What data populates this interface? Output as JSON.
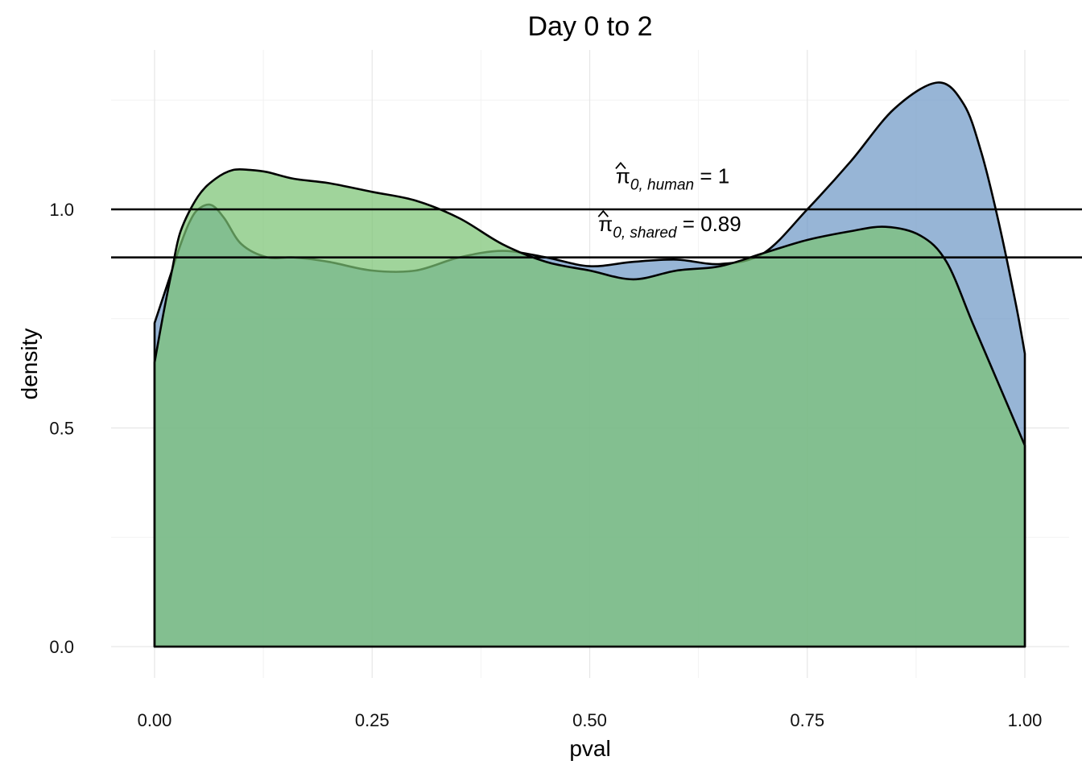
{
  "chart_data": {
    "type": "area",
    "title": "Day 0 to 2",
    "xlabel": "pval",
    "ylabel": "density",
    "xlim": [
      0,
      1
    ],
    "ylim": [
      0,
      1.25
    ],
    "x_ticks": [
      0,
      0.25,
      0.5,
      0.75,
      1
    ],
    "x_tick_labels": [
      "0.00",
      "0.25",
      "0.50",
      "0.75",
      "1.00"
    ],
    "y_ticks": [
      0,
      0.5,
      1
    ],
    "y_tick_labels": [
      "0.0",
      "0.5",
      "1.0"
    ],
    "grid": true,
    "legend": "none",
    "series": [
      {
        "color": "#6f98c6",
        "fill_opacity": 0.72,
        "x": [
          0,
          0.01,
          0.02,
          0.03,
          0.04,
          0.05,
          0.065,
          0.08,
          0.1,
          0.13,
          0.16,
          0.2,
          0.25,
          0.3,
          0.35,
          0.4,
          0.45,
          0.5,
          0.55,
          0.6,
          0.65,
          0.7,
          0.75,
          0.8,
          0.85,
          0.9,
          0.93,
          0.95,
          0.97,
          0.99,
          1.0
        ],
        "y": [
          0.74,
          0.8,
          0.86,
          0.92,
          0.97,
          1.0,
          1.01,
          0.98,
          0.92,
          0.89,
          0.89,
          0.88,
          0.86,
          0.86,
          0.89,
          0.905,
          0.89,
          0.87,
          0.88,
          0.885,
          0.875,
          0.9,
          1.0,
          1.11,
          1.23,
          1.29,
          1.24,
          1.13,
          0.97,
          0.78,
          0.67
        ]
      },
      {
        "color": "#7cc374",
        "fill_opacity": 0.72,
        "x": [
          0,
          0.01,
          0.02,
          0.03,
          0.05,
          0.07,
          0.09,
          0.11,
          0.13,
          0.16,
          0.2,
          0.25,
          0.3,
          0.35,
          0.4,
          0.45,
          0.5,
          0.55,
          0.6,
          0.65,
          0.7,
          0.75,
          0.8,
          0.84,
          0.88,
          0.91,
          0.94,
          0.97,
          1.0
        ],
        "y": [
          0.65,
          0.76,
          0.86,
          0.95,
          1.03,
          1.07,
          1.09,
          1.09,
          1.085,
          1.07,
          1.06,
          1.04,
          1.02,
          0.98,
          0.92,
          0.88,
          0.86,
          0.84,
          0.86,
          0.87,
          0.9,
          0.93,
          0.95,
          0.96,
          0.94,
          0.88,
          0.74,
          0.6,
          0.46
        ]
      }
    ],
    "hlines": [
      1.0,
      0.89
    ],
    "annotations": [
      {
        "symbol": "π",
        "subscript": "0, human",
        "text": "= 1",
        "x": 0.53,
        "y": 1.06
      },
      {
        "symbol": "π",
        "subscript": "0, shared",
        "text": "= 0.89",
        "x": 0.51,
        "y": 0.95
      }
    ]
  }
}
